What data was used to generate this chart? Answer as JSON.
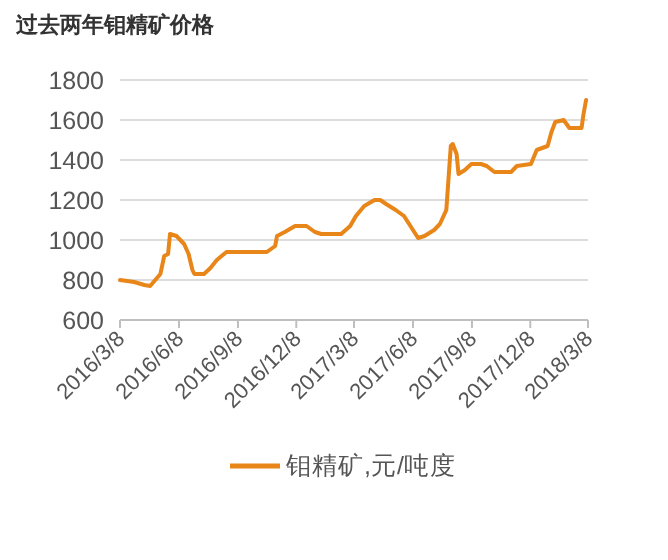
{
  "chart_data": {
    "type": "line",
    "title": "过去两年钼精矿价格",
    "x": [
      "2016-03-08",
      "2016-03-30",
      "2016-04-15",
      "2016-04-24",
      "2016-05-10",
      "2016-05-16",
      "2016-05-22",
      "2016-05-25",
      "2016-06-04",
      "2016-06-16",
      "2016-06-23",
      "2016-06-29",
      "2016-07-02",
      "2016-07-17",
      "2016-07-27",
      "2016-08-06",
      "2016-08-21",
      "2016-10-23",
      "2016-11-05",
      "2016-11-08",
      "2016-11-20",
      "2016-12-06",
      "2016-12-24",
      "2017-01-06",
      "2017-01-16",
      "2017-02-16",
      "2017-03-02",
      "2017-03-11",
      "2017-03-24",
      "2017-04-09",
      "2017-04-18",
      "2017-04-27",
      "2017-05-12",
      "2017-05-25",
      "2017-06-04",
      "2017-06-16",
      "2017-06-26",
      "2017-07-11",
      "2017-07-20",
      "2017-07-30",
      "2017-08-06",
      "2017-08-09",
      "2017-08-15",
      "2017-08-18",
      "2017-08-28",
      "2017-09-07",
      "2017-09-22",
      "2017-10-01",
      "2017-10-13",
      "2017-11-08",
      "2017-11-17",
      "2017-12-09",
      "2017-12-18",
      "2018-01-04",
      "2018-01-10",
      "2018-01-16",
      "2018-01-29",
      "2018-02-07",
      "2018-02-26",
      "2018-03-01",
      "2018-03-05"
    ],
    "series": [
      {
        "name": "钼精矿,元/吨度",
        "color": "#e8861a",
        "values": [
          800,
          790,
          775,
          770,
          830,
          920,
          930,
          1030,
          1020,
          980,
          930,
          850,
          830,
          830,
          860,
          900,
          940,
          940,
          970,
          1020,
          1040,
          1070,
          1070,
          1040,
          1030,
          1030,
          1070,
          1120,
          1170,
          1200,
          1200,
          1180,
          1150,
          1120,
          1070,
          1010,
          1020,
          1050,
          1080,
          1150,
          1470,
          1480,
          1430,
          1330,
          1350,
          1380,
          1380,
          1370,
          1340,
          1340,
          1370,
          1380,
          1450,
          1470,
          1540,
          1590,
          1600,
          1560,
          1560,
          1630,
          1700
        ]
      }
    ],
    "xlim": [
      "2016-03-08",
      "2018-03-08"
    ],
    "xticks": [
      {
        "value": "2016-03-08",
        "label": "2016/3/8"
      },
      {
        "value": "2016-06-08",
        "label": "2016/6/8"
      },
      {
        "value": "2016-09-08",
        "label": "2016/9/8"
      },
      {
        "value": "2016-12-08",
        "label": "2016/12/8"
      },
      {
        "value": "2017-03-08",
        "label": "2017/3/8"
      },
      {
        "value": "2017-06-08",
        "label": "2017/6/8"
      },
      {
        "value": "2017-09-08",
        "label": "2017/9/8"
      },
      {
        "value": "2017-12-08",
        "label": "2017/12/8"
      },
      {
        "value": "2018-03-08",
        "label": "2018/3/8"
      }
    ],
    "ylim": [
      600,
      1800
    ],
    "yticks": [
      600,
      800,
      1000,
      1200,
      1400,
      1600,
      1800
    ],
    "grid": "y",
    "legend": "bottom"
  }
}
